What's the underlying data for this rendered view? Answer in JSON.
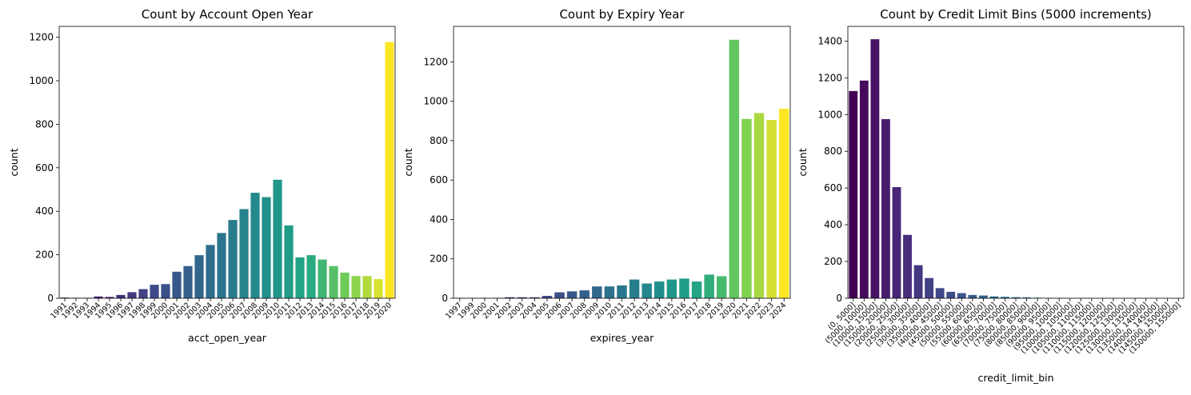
{
  "chart_data": [
    {
      "type": "bar",
      "title": "Count by Account Open Year",
      "xlabel": "acct_open_year",
      "ylabel": "count",
      "ylim": [
        0,
        1250
      ],
      "yticks": [
        0,
        200,
        400,
        600,
        800,
        1000,
        1200
      ],
      "palette": "viridis",
      "grid": false,
      "categories": [
        "1991",
        "1992",
        "1993",
        "1994",
        "1995",
        "1996",
        "1997",
        "1998",
        "1999",
        "2000",
        "2001",
        "2002",
        "2003",
        "2004",
        "2005",
        "2006",
        "2007",
        "2008",
        "2009",
        "2010",
        "2011",
        "2012",
        "2013",
        "2014",
        "2015",
        "2016",
        "2017",
        "2018",
        "2019",
        "2020"
      ],
      "values": [
        3,
        2,
        2,
        8,
        6,
        15,
        28,
        42,
        62,
        65,
        122,
        148,
        198,
        245,
        300,
        360,
        410,
        485,
        465,
        545,
        335,
        188,
        198,
        178,
        148,
        118,
        102,
        102,
        88,
        1178
      ]
    },
    {
      "type": "bar",
      "title": "Count by Expiry Year",
      "xlabel": "expires_year",
      "ylabel": "count",
      "ylim": [
        0,
        1380
      ],
      "yticks": [
        0,
        200,
        400,
        600,
        800,
        1000,
        1200
      ],
      "palette": "viridis",
      "grid": false,
      "categories": [
        "1997",
        "1999",
        "2000",
        "2001",
        "2002",
        "2003",
        "2004",
        "2005",
        "2006",
        "2007",
        "2008",
        "2009",
        "2010",
        "2011",
        "2012",
        "2013",
        "2014",
        "2015",
        "2016",
        "2017",
        "2018",
        "2019",
        "2020",
        "2021",
        "2022",
        "2023",
        "2024"
      ],
      "values": [
        2,
        2,
        2,
        2,
        5,
        5,
        5,
        12,
        30,
        35,
        40,
        60,
        60,
        65,
        95,
        75,
        85,
        95,
        100,
        85,
        120,
        112,
        1312,
        910,
        940,
        905,
        962
      ]
    },
    {
      "type": "bar",
      "title": "Count by Credit Limit Bins (5000 increments)",
      "xlabel": "credit_limit_bin",
      "ylabel": "count",
      "ylim": [
        0,
        1480
      ],
      "yticks": [
        0,
        200,
        400,
        600,
        800,
        1000,
        1200,
        1400
      ],
      "palette": "viridis",
      "grid": false,
      "categories": [
        "(0, 5000]",
        "(5000, 10000]",
        "(10000, 15000]",
        "(15000, 20000]",
        "(20000, 25000]",
        "(25000, 30000]",
        "(30000, 35000]",
        "(35000, 40000]",
        "(40000, 45000]",
        "(45000, 50000]",
        "(50000, 55000]",
        "(55000, 60000]",
        "(60000, 65000]",
        "(65000, 70000]",
        "(70000, 75000]",
        "(75000, 80000]",
        "(80000, 85000]",
        "(85000, 90000]",
        "(90000, 95000]",
        "(95000, 100000]",
        "(100000, 105000]",
        "(105000, 110000]",
        "(110000, 115000]",
        "(115000, 120000]",
        "(120000, 125000]",
        "(125000, 130000]",
        "(130000, 135000]",
        "(135000, 140000]",
        "(140000, 145000]",
        "(145000, 150000]",
        "(150000, 155000]"
      ],
      "values": [
        1128,
        1185,
        1410,
        975,
        605,
        345,
        180,
        110,
        55,
        35,
        28,
        18,
        15,
        10,
        8,
        6,
        5,
        3,
        2,
        2,
        1,
        1,
        1,
        1,
        1,
        1,
        1,
        1,
        1,
        1,
        1
      ]
    }
  ]
}
